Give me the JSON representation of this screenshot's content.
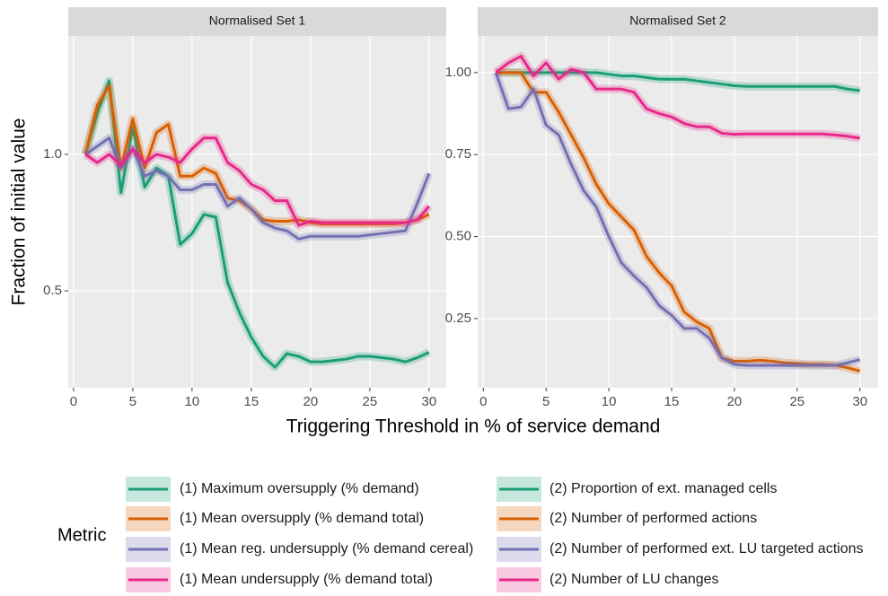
{
  "xlabel": "Triggering Threshold in % of service demand",
  "ylabel": "Fraction of initial value",
  "legend_title": "Metric",
  "legend_position": "bottom",
  "chart_data": [
    {
      "type": "line",
      "title": "Normalised Set 1",
      "x": [
        1,
        2,
        3,
        4,
        5,
        6,
        7,
        8,
        9,
        10,
        11,
        12,
        13,
        14,
        15,
        16,
        17,
        18,
        19,
        20,
        21,
        22,
        23,
        24,
        25,
        26,
        27,
        28,
        29,
        30
      ],
      "xlim": [
        -0.45,
        31.45
      ],
      "xticks": [
        0,
        5,
        10,
        15,
        20,
        25,
        30
      ],
      "ylim": [
        0.145,
        1.434
      ],
      "yticks": [
        0.5,
        {
          "value": 1,
          "label": "1.0"
        }
      ],
      "grid": true,
      "series": [
        {
          "name": "(1) Maximum oversupply (% demand)",
          "color": "#1b9e77",
          "values": [
            1.0,
            1.15,
            1.27,
            0.86,
            1.1,
            0.88,
            0.95,
            0.92,
            0.67,
            0.71,
            0.78,
            0.77,
            0.53,
            0.42,
            0.33,
            0.26,
            0.22,
            0.27,
            0.26,
            0.24,
            0.24,
            0.245,
            0.25,
            0.26,
            0.26,
            0.255,
            0.25,
            0.24,
            0.255,
            0.275
          ]
        },
        {
          "name": "(1) Mean oversupply (% demand total)",
          "color": "#d95f02",
          "values": [
            1.0,
            1.18,
            1.25,
            0.95,
            1.13,
            0.95,
            1.08,
            1.11,
            0.92,
            0.92,
            0.95,
            0.93,
            0.84,
            0.83,
            0.8,
            0.76,
            0.755,
            0.755,
            0.76,
            0.75,
            0.745,
            0.745,
            0.745,
            0.745,
            0.745,
            0.745,
            0.745,
            0.75,
            0.76,
            0.78
          ]
        },
        {
          "name": "(1) Mean reg. undersupply (% demand cereal)",
          "color": "#7570b3",
          "values": [
            1.0,
            1.03,
            1.06,
            0.95,
            1.02,
            0.92,
            0.94,
            0.92,
            0.87,
            0.87,
            0.89,
            0.89,
            0.81,
            0.84,
            0.8,
            0.75,
            0.73,
            0.72,
            0.69,
            0.7,
            0.7,
            0.7,
            0.7,
            0.7,
            0.705,
            0.71,
            0.715,
            0.72,
            0.82,
            0.93
          ]
        },
        {
          "name": "(1) Mean undersupply (% demand total)",
          "color": "#e7298a",
          "values": [
            1.0,
            0.97,
            1.0,
            0.96,
            1.02,
            0.97,
            1.0,
            0.99,
            0.97,
            1.02,
            1.06,
            1.06,
            0.97,
            0.94,
            0.89,
            0.87,
            0.83,
            0.83,
            0.74,
            0.755,
            0.75,
            0.75,
            0.75,
            0.75,
            0.75,
            0.75,
            0.75,
            0.75,
            0.76,
            0.81
          ]
        }
      ]
    },
    {
      "type": "line",
      "title": "Normalised Set 2",
      "x": [
        1,
        2,
        3,
        4,
        5,
        6,
        7,
        8,
        9,
        10,
        11,
        12,
        13,
        14,
        15,
        16,
        17,
        18,
        19,
        20,
        21,
        22,
        23,
        24,
        25,
        26,
        27,
        28,
        29,
        30
      ],
      "xlim": [
        -0.45,
        31.45
      ],
      "xticks": [
        0,
        5,
        10,
        15,
        20,
        25,
        30
      ],
      "ylim": [
        0.039,
        1.112
      ],
      "yticks": [
        {
          "value": 0.25,
          "label": "0.25"
        },
        {
          "value": 0.5,
          "label": "0.50"
        },
        {
          "value": 0.75,
          "label": "0.75"
        },
        {
          "value": 1,
          "label": "1.00"
        }
      ],
      "grid": true,
      "series": [
        {
          "name": "(2) Proportion of ext. managed cells",
          "color": "#1b9e77",
          "values": [
            1.0,
            1.0,
            1.0,
            1.0,
            1.0,
            1.0,
            1.0,
            1.0,
            1.0,
            0.995,
            0.99,
            0.99,
            0.985,
            0.98,
            0.98,
            0.98,
            0.975,
            0.97,
            0.965,
            0.96,
            0.958,
            0.958,
            0.958,
            0.958,
            0.958,
            0.958,
            0.958,
            0.958,
            0.95,
            0.945
          ]
        },
        {
          "name": "(2) Number of performed actions",
          "color": "#d95f02",
          "values": [
            1.0,
            1.0,
            1.0,
            0.94,
            0.94,
            0.88,
            0.81,
            0.74,
            0.66,
            0.6,
            0.56,
            0.52,
            0.44,
            0.39,
            0.35,
            0.27,
            0.24,
            0.22,
            0.13,
            0.12,
            0.12,
            0.123,
            0.12,
            0.115,
            0.113,
            0.11,
            0.11,
            0.108,
            0.1,
            0.09
          ]
        },
        {
          "name": "(2) Number of performed ext. LU targeted actions",
          "color": "#7570b3",
          "values": [
            1.0,
            0.89,
            0.895,
            0.95,
            0.84,
            0.81,
            0.72,
            0.64,
            0.59,
            0.5,
            0.42,
            0.38,
            0.345,
            0.29,
            0.26,
            0.22,
            0.22,
            0.19,
            0.13,
            0.11,
            0.107,
            0.107,
            0.107,
            0.107,
            0.107,
            0.107,
            0.107,
            0.107,
            0.115,
            0.125
          ]
        },
        {
          "name": "(2) Number of LU changes",
          "color": "#e7298a",
          "values": [
            1.0,
            1.03,
            1.05,
            0.99,
            1.03,
            0.98,
            1.01,
            1.0,
            0.95,
            0.95,
            0.95,
            0.94,
            0.89,
            0.875,
            0.865,
            0.845,
            0.835,
            0.835,
            0.815,
            0.812,
            0.813,
            0.813,
            0.813,
            0.813,
            0.813,
            0.813,
            0.813,
            0.81,
            0.806,
            0.8
          ]
        }
      ]
    }
  ]
}
